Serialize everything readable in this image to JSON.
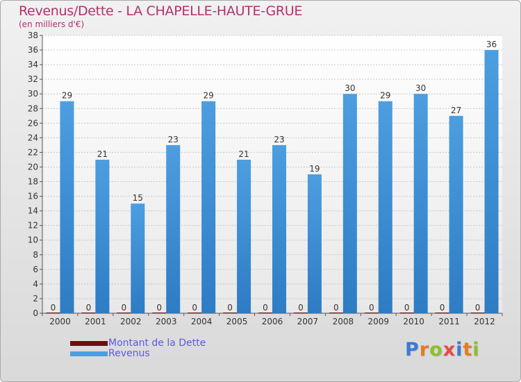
{
  "title": "Revenus/Dette - LA CHAPELLE-HAUTE-GRUE",
  "subtitle": "(en milliers d'€)",
  "logo": {
    "text": "Proxiti",
    "letter_colors": [
      "#3a7bd5",
      "#e87a1e",
      "#8fbf2a",
      "#e84a4a",
      "#3a7bd5",
      "#e87a1e",
      "#8fbf2a"
    ]
  },
  "colors": {
    "dette": "#6b0f0f",
    "revenus": "#4c9ee0",
    "revenus_dark": "#2d7cc4",
    "axis_text": "#333333",
    "grid": "#c8c8c8"
  },
  "legend": [
    {
      "label": "Montant de la Dette",
      "color": "#6b0f0f"
    },
    {
      "label": "Revenus",
      "color": "#4c9ee0"
    }
  ],
  "chart_data": {
    "type": "bar",
    "title": "Revenus/Dette - LA CHAPELLE-HAUTE-GRUE",
    "ylabel": "(en milliers d'€)",
    "categories": [
      "2000",
      "2001",
      "2002",
      "2003",
      "2004",
      "2005",
      "2006",
      "2007",
      "2008",
      "2009",
      "2010",
      "2011",
      "2012"
    ],
    "series": [
      {
        "name": "Montant de la Dette",
        "values": [
          0,
          0,
          0,
          0,
          0,
          0,
          0,
          0,
          0,
          0,
          0,
          0,
          0
        ]
      },
      {
        "name": "Revenus",
        "values": [
          29,
          21,
          15,
          23,
          29,
          21,
          23,
          19,
          30,
          29,
          30,
          27,
          36
        ]
      }
    ],
    "ylim": [
      0,
      38
    ],
    "ytick_step": 2,
    "grid": true,
    "legend_position": "bottom-left"
  }
}
